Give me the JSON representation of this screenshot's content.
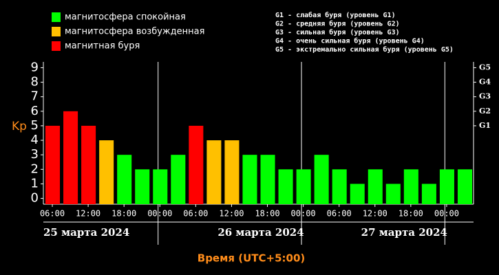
{
  "chart_data": {
    "type": "bar",
    "ylabel": "Kp",
    "xlabel": "Время (UTC+5:00)",
    "legend": [
      {
        "name": "магнитосфера спокойная",
        "color": "#00ff00"
      },
      {
        "name": "магнитосфера возбужденная",
        "color": "#ffc000"
      },
      {
        "name": "магнитная буря",
        "color": "#ff0000"
      }
    ],
    "g_legend": [
      "G1 - слабая буря (уровень G1)",
      "G2 - средняя буря (уровень G2)",
      "G3 - сильная буря (уровень G3)",
      "G4 - очень сильная буря (уровень G4)",
      "G5 - экстремально сильная буря (уровень G5)"
    ],
    "categories": [
      "06:00",
      null,
      "12:00",
      null,
      "18:00",
      null,
      "00:00",
      null,
      "06:00",
      null,
      "12:00",
      null,
      "18:00",
      null,
      "00:00",
      null,
      "06:00",
      null,
      "12:00",
      null,
      "18:00",
      null,
      "00:00",
      null
    ],
    "values": [
      5,
      6,
      5,
      4,
      3,
      2,
      2,
      3,
      5,
      4,
      4,
      3,
      3,
      2,
      2,
      3,
      2,
      1,
      2,
      1,
      2,
      1,
      2,
      2
    ],
    "colors": [
      "#ff0000",
      "#ff0000",
      "#ff0000",
      "#ffc000",
      "#00ff00",
      "#00ff00",
      "#00ff00",
      "#00ff00",
      "#ff0000",
      "#ffc000",
      "#ffc000",
      "#00ff00",
      "#00ff00",
      "#00ff00",
      "#00ff00",
      "#00ff00",
      "#00ff00",
      "#00ff00",
      "#00ff00",
      "#00ff00",
      "#00ff00",
      "#00ff00",
      "#00ff00",
      "#00ff00"
    ],
    "days": [
      "25 марта 2024",
      "26 марта 2024",
      "27 марта 2024"
    ],
    "ylim": [
      -0.4,
      9.4
    ],
    "yticks": [
      0,
      1,
      2,
      3,
      4,
      5,
      6,
      7,
      8,
      9
    ],
    "y2lim": [
      -0.4,
      9.4
    ],
    "y2ticks": [
      {
        "value": 5,
        "label": "G1"
      },
      {
        "value": 6,
        "label": "G2"
      },
      {
        "value": 7,
        "label": "G3"
      },
      {
        "value": 8,
        "label": "G4"
      },
      {
        "value": 9,
        "label": "G5"
      }
    ]
  }
}
